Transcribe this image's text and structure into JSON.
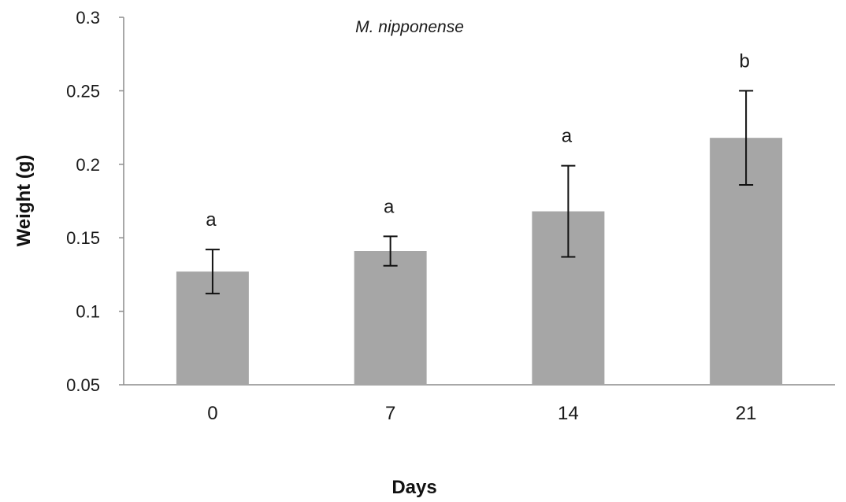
{
  "chart_data": {
    "type": "bar",
    "title": "M. nipponense",
    "xlabel": "Days",
    "ylabel": "Weight (g)",
    "categories": [
      "0",
      "7",
      "14",
      "21"
    ],
    "values": [
      0.127,
      0.141,
      0.168,
      0.218
    ],
    "error": [
      0.015,
      0.01,
      0.031,
      0.032
    ],
    "significance_labels": [
      "a",
      "a",
      "a",
      "b"
    ],
    "ylim": [
      0.05,
      0.3
    ],
    "yticks": [
      "0.05",
      "0.1",
      "0.15",
      "0.2",
      "0.25",
      "0.3"
    ],
    "grid": false,
    "bar_color": "#a6a6a6"
  }
}
